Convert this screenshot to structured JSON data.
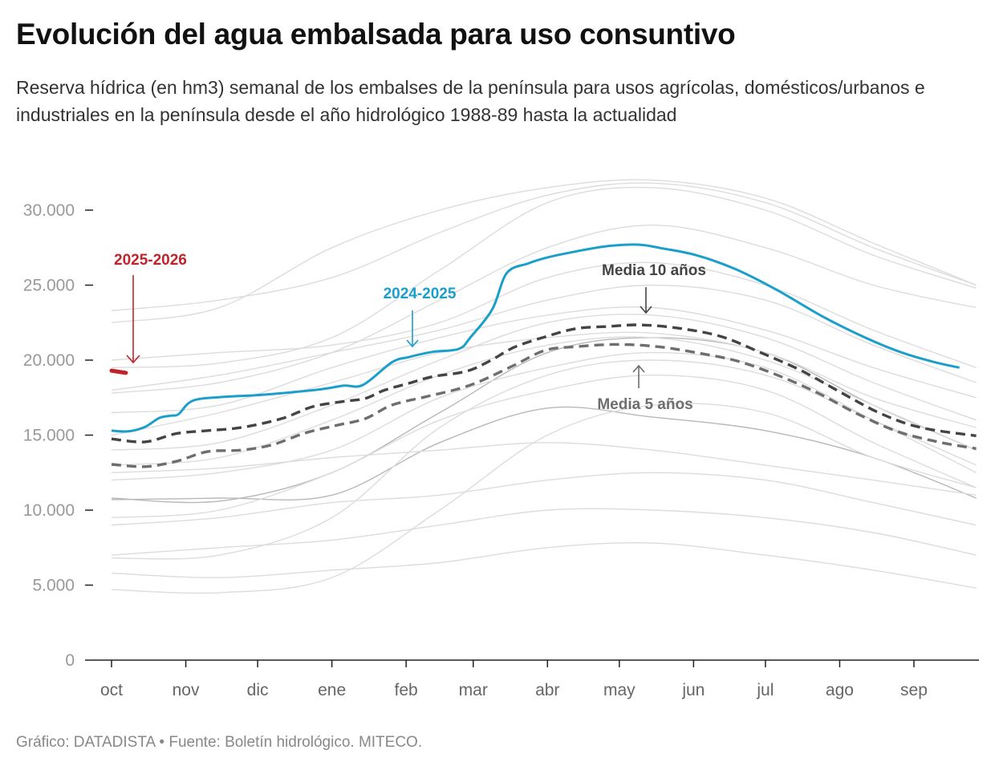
{
  "title": "Evolución del agua embalsada para uso consuntivo",
  "subtitle": "Reserva hídrica (en hm3) semanal de los embalses de la península para usos agrícolas, domésticos/urbanos e industriales en la península desde el año hidrológico 1988-89 hasta la actualidad",
  "footer": "Gráfico: DATADISTA • Fuente: Boletín hidrológico. MITECO.",
  "chart_data": {
    "type": "line",
    "title": "Evolución del agua embalsada para uso consuntivo",
    "xlabel": "",
    "ylabel": "",
    "ylim": [
      0,
      32000
    ],
    "y_ticks": [
      {
        "value": 0,
        "label": "0"
      },
      {
        "value": 5000,
        "label": "5.000"
      },
      {
        "value": 10000,
        "label": "10.000"
      },
      {
        "value": 15000,
        "label": "15.000"
      },
      {
        "value": 20000,
        "label": "20.000"
      },
      {
        "value": 25000,
        "label": "25.000"
      },
      {
        "value": 30000,
        "label": "30.000"
      }
    ],
    "x_ticks": [
      {
        "date": "10-01",
        "label": "oct"
      },
      {
        "date": "11-01",
        "label": "nov"
      },
      {
        "date": "12-01",
        "label": "dic"
      },
      {
        "date": "01-01",
        "label": "ene"
      },
      {
        "date": "02-01",
        "label": "feb"
      },
      {
        "date": "03-01",
        "label": "mar"
      },
      {
        "date": "04-01",
        "label": "abr"
      },
      {
        "date": "05-01",
        "label": "may"
      },
      {
        "date": "06-01",
        "label": "jun"
      },
      {
        "date": "07-01",
        "label": "jul"
      },
      {
        "date": "08-01",
        "label": "ago"
      },
      {
        "date": "09-01",
        "label": "sep"
      }
    ],
    "grid": false,
    "colors": {
      "current": "#c0242a",
      "previous": "#1a9fcb",
      "mean10": "#444444",
      "mean5": "#6e6e6e",
      "history": "#dcdcdc",
      "history_dark": "#b8b8b8"
    },
    "history_dates": [
      "10-01",
      "11-15",
      "01-01",
      "02-15",
      "04-01",
      "05-15",
      "07-01",
      "08-15",
      "09-27"
    ],
    "history": [
      [
        23300,
        24000,
        25500,
        28500,
        31000,
        31800,
        30500,
        27500,
        25000
      ],
      [
        19500,
        19800,
        21500,
        26000,
        30500,
        31500,
        30000,
        27000,
        24800
      ],
      [
        22500,
        23500,
        27500,
        30000,
        31500,
        32000,
        30800,
        27800,
        25000
      ],
      [
        20000,
        20500,
        21000,
        22500,
        25500,
        26500,
        25000,
        22000,
        19500
      ],
      [
        18000,
        19000,
        20500,
        22000,
        24000,
        25000,
        24000,
        21000,
        18500
      ],
      [
        16500,
        17000,
        19500,
        21500,
        23000,
        23500,
        22000,
        19500,
        17500
      ],
      [
        14000,
        14500,
        17000,
        20000,
        22500,
        23000,
        21500,
        18500,
        16000
      ],
      [
        10800,
        10600,
        12500,
        16500,
        20500,
        21500,
        20500,
        17000,
        14000
      ],
      [
        10700,
        10800,
        11000,
        14500,
        16800,
        16200,
        15300,
        13500,
        10800
      ],
      [
        12500,
        12800,
        13500,
        14000,
        14500,
        14000,
        13000,
        12000,
        11000
      ],
      [
        9000,
        9500,
        10500,
        11000,
        12000,
        12500,
        12000,
        10500,
        9000
      ],
      [
        7000,
        7500,
        8000,
        9000,
        10000,
        10000,
        9500,
        8500,
        7000
      ],
      [
        6800,
        7000,
        9500,
        15500,
        19000,
        20000,
        19000,
        16000,
        13000
      ],
      [
        4700,
        4500,
        5500,
        10000,
        15000,
        17000,
        16500,
        13500,
        11500
      ],
      [
        5800,
        5500,
        6000,
        6500,
        7500,
        7800,
        7000,
        6000,
        4800
      ],
      [
        13000,
        13500,
        16000,
        19000,
        21000,
        21500,
        20000,
        17000,
        14000
      ],
      [
        17800,
        18500,
        20500,
        24000,
        27500,
        29000,
        27500,
        25000,
        23500
      ],
      [
        15000,
        16500,
        18500,
        20500,
        21500,
        21800,
        20500,
        17500,
        15500
      ],
      [
        12000,
        12500,
        14000,
        17500,
        19500,
        20500,
        19500,
        16000,
        12500
      ],
      [
        9500,
        10000,
        12500,
        16000,
        18000,
        19000,
        18000,
        14500,
        11500
      ]
    ],
    "series": [
      {
        "name": "Media 5 años",
        "key": "mean5",
        "dashed": true,
        "points": [
          [
            "10-01",
            13050
          ],
          [
            "10-15",
            12900
          ],
          [
            "10-28",
            13250
          ],
          [
            "11-10",
            13900
          ],
          [
            "11-24",
            14000
          ],
          [
            "12-07",
            14350
          ],
          [
            "12-21",
            15150
          ],
          [
            "01-03",
            15650
          ],
          [
            "01-15",
            16100
          ],
          [
            "01-26",
            17000
          ],
          [
            "02-09",
            17550
          ],
          [
            "02-22",
            18050
          ],
          [
            "03-04",
            18600
          ],
          [
            "03-18",
            19650
          ],
          [
            "03-31",
            20650
          ],
          [
            "04-13",
            20900
          ],
          [
            "04-30",
            21050
          ],
          [
            "05-17",
            20900
          ],
          [
            "06-02",
            20500
          ],
          [
            "06-19",
            19950
          ],
          [
            "07-06",
            19000
          ],
          [
            "07-23",
            17800
          ],
          [
            "08-08",
            16450
          ],
          [
            "08-25",
            15250
          ],
          [
            "09-11",
            14550
          ],
          [
            "09-27",
            14100
          ]
        ]
      },
      {
        "name": "Media 10 años",
        "key": "mean10",
        "dashed": true,
        "points": [
          [
            "10-01",
            14750
          ],
          [
            "10-15",
            14550
          ],
          [
            "10-28",
            15100
          ],
          [
            "11-10",
            15300
          ],
          [
            "11-24",
            15500
          ],
          [
            "12-11",
            16100
          ],
          [
            "12-24",
            16900
          ],
          [
            "01-06",
            17250
          ],
          [
            "01-15",
            17450
          ],
          [
            "01-23",
            18000
          ],
          [
            "02-02",
            18450
          ],
          [
            "02-12",
            18900
          ],
          [
            "02-26",
            19250
          ],
          [
            "03-08",
            19950
          ],
          [
            "03-18",
            20850
          ],
          [
            "03-31",
            21550
          ],
          [
            "04-13",
            22100
          ],
          [
            "04-27",
            22250
          ],
          [
            "05-10",
            22350
          ],
          [
            "05-27",
            22100
          ],
          [
            "06-13",
            21550
          ],
          [
            "06-29",
            20500
          ],
          [
            "07-16",
            19300
          ],
          [
            "08-02",
            17800
          ],
          [
            "08-18",
            16450
          ],
          [
            "09-04",
            15500
          ],
          [
            "09-27",
            14950
          ]
        ]
      },
      {
        "name": "2024-2025",
        "key": "previous",
        "dashed": false,
        "points": [
          [
            "10-01",
            15300
          ],
          [
            "10-08",
            15250
          ],
          [
            "10-15",
            15550
          ],
          [
            "10-21",
            16150
          ],
          [
            "10-26",
            16300
          ],
          [
            "10-29",
            16400
          ],
          [
            "11-04",
            17300
          ],
          [
            "11-17",
            17550
          ],
          [
            "12-04",
            17700
          ],
          [
            "12-27",
            18050
          ],
          [
            "01-06",
            18300
          ],
          [
            "01-14",
            18350
          ],
          [
            "01-26",
            19850
          ],
          [
            "02-02",
            20200
          ],
          [
            "02-12",
            20550
          ],
          [
            "02-23",
            20750
          ],
          [
            "02-28",
            21550
          ],
          [
            "03-09",
            23400
          ],
          [
            "03-15",
            25800
          ],
          [
            "03-24",
            26450
          ],
          [
            "04-01",
            26850
          ],
          [
            "04-13",
            27250
          ],
          [
            "04-26",
            27600
          ],
          [
            "05-09",
            27700
          ],
          [
            "05-19",
            27450
          ],
          [
            "06-02",
            27000
          ],
          [
            "06-18",
            26100
          ],
          [
            "07-05",
            24750
          ],
          [
            "07-25",
            22900
          ],
          [
            "08-11",
            21550
          ],
          [
            "08-27",
            20500
          ],
          [
            "09-10",
            19850
          ],
          [
            "09-20",
            19500
          ]
        ]
      },
      {
        "name": "2025-2026",
        "key": "current",
        "dashed": false,
        "points": [
          [
            "10-01",
            19300
          ],
          [
            "10-07",
            19150
          ]
        ]
      }
    ],
    "annotations": [
      {
        "text": "2025-2026",
        "key": "current"
      },
      {
        "text": "2024-2025",
        "key": "previous"
      },
      {
        "text": "Media 10 años",
        "key": "mean10"
      },
      {
        "text": "Media 5 años",
        "key": "mean5"
      }
    ]
  }
}
